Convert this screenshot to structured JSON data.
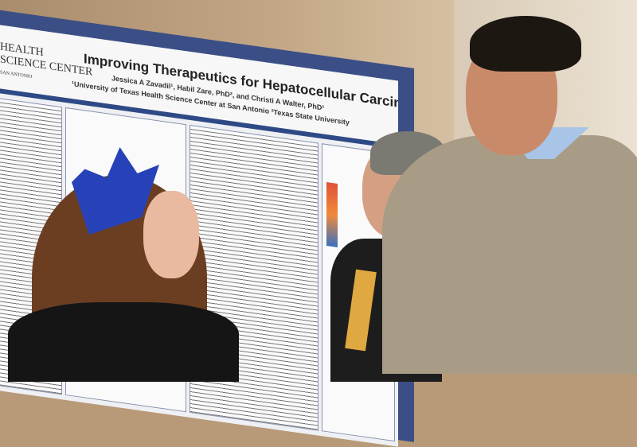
{
  "poster": {
    "logo_text": "HEALTH SCIENCE CENTER SAN ANTONIO",
    "title": "Improving Therapeutics for Hepatocellular Carcinoma",
    "authors": "Jessica A Zavadil¹, Habil Zare, PhD², and Christi A Walter, PhD¹",
    "affiliations": "¹University of Texas Health Science Center at San Antonio ²Texas State University"
  }
}
